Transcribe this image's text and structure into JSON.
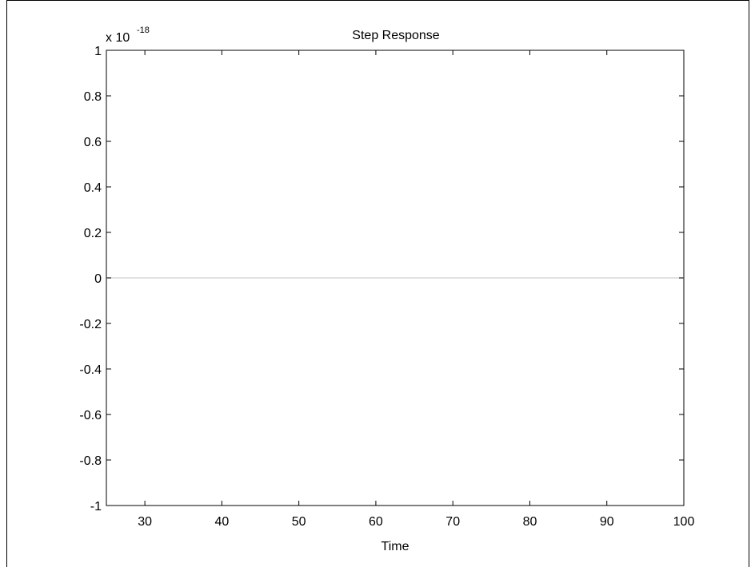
{
  "chart_data": {
    "type": "line",
    "title": "Step Response",
    "xlabel": "Time",
    "ylabel": "",
    "y_exponent_label": "x 10",
    "y_exponent_power": "-18",
    "xlim": [
      25,
      100
    ],
    "ylim": [
      -1,
      1
    ],
    "x_ticks": [
      30,
      40,
      50,
      60,
      70,
      80,
      90,
      100
    ],
    "x_tick_labels": [
      "30",
      "40",
      "50",
      "60",
      "70",
      "80",
      "90",
      "100"
    ],
    "y_ticks": [
      1,
      0.8,
      0.6,
      0.4,
      0.2,
      0,
      -0.2,
      -0.4,
      -0.6,
      -0.8,
      -1
    ],
    "y_tick_labels": [
      "1",
      "0.8",
      "0.6",
      "0.4",
      "0.2",
      "0",
      "-0.2",
      "-0.4",
      "-0.6",
      "-0.8",
      "-1"
    ],
    "grid": false,
    "series": [
      {
        "color": "#d9d9d9",
        "x": [
          25,
          100
        ],
        "y": [
          0,
          0
        ]
      }
    ]
  }
}
